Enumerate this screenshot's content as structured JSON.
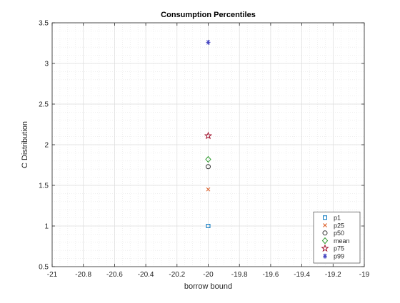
{
  "chart_data": {
    "type": "scatter",
    "title": "Consumption Percentiles",
    "xlabel": "borrow bound",
    "ylabel": "C Distribution",
    "xlim": [
      -21,
      -19
    ],
    "ylim": [
      0.5,
      3.5
    ],
    "xticks": [
      -21,
      -20.8,
      -20.6,
      -20.4,
      -20.2,
      -20,
      -19.8,
      -19.6,
      -19.4,
      -19.2,
      -19
    ],
    "yticks": [
      0.5,
      1,
      1.5,
      2,
      2.5,
      3,
      3.5
    ],
    "xtick_labels": [
      "-21",
      "-20.8",
      "-20.6",
      "-20.4",
      "-20.2",
      "-20",
      "-19.8",
      "-19.6",
      "-19.4",
      "-19.2",
      "-19"
    ],
    "ytick_labels": [
      "0.5",
      "1",
      "1.5",
      "2",
      "2.5",
      "3",
      "3.5"
    ],
    "grid": "major and minor",
    "legend_position": "bottom-right",
    "series": [
      {
        "name": "p1",
        "marker": "square",
        "color": "#0072BD",
        "x": [
          -20
        ],
        "y": [
          1.0
        ]
      },
      {
        "name": "p25",
        "marker": "x",
        "color": "#D95319",
        "x": [
          -20
        ],
        "y": [
          1.45
        ]
      },
      {
        "name": "p50",
        "marker": "circle",
        "color": "#333333",
        "x": [
          -20
        ],
        "y": [
          1.73
        ]
      },
      {
        "name": "mean",
        "marker": "diamond",
        "color": "#2E9B2E",
        "x": [
          -20
        ],
        "y": [
          1.82
        ]
      },
      {
        "name": "p75",
        "marker": "pentagram",
        "color": "#A2142F",
        "x": [
          -20
        ],
        "y": [
          2.11
        ]
      },
      {
        "name": "p99",
        "marker": "asterisk",
        "color": "#3F3FBF",
        "x": [
          -20
        ],
        "y": [
          3.26
        ]
      }
    ]
  }
}
